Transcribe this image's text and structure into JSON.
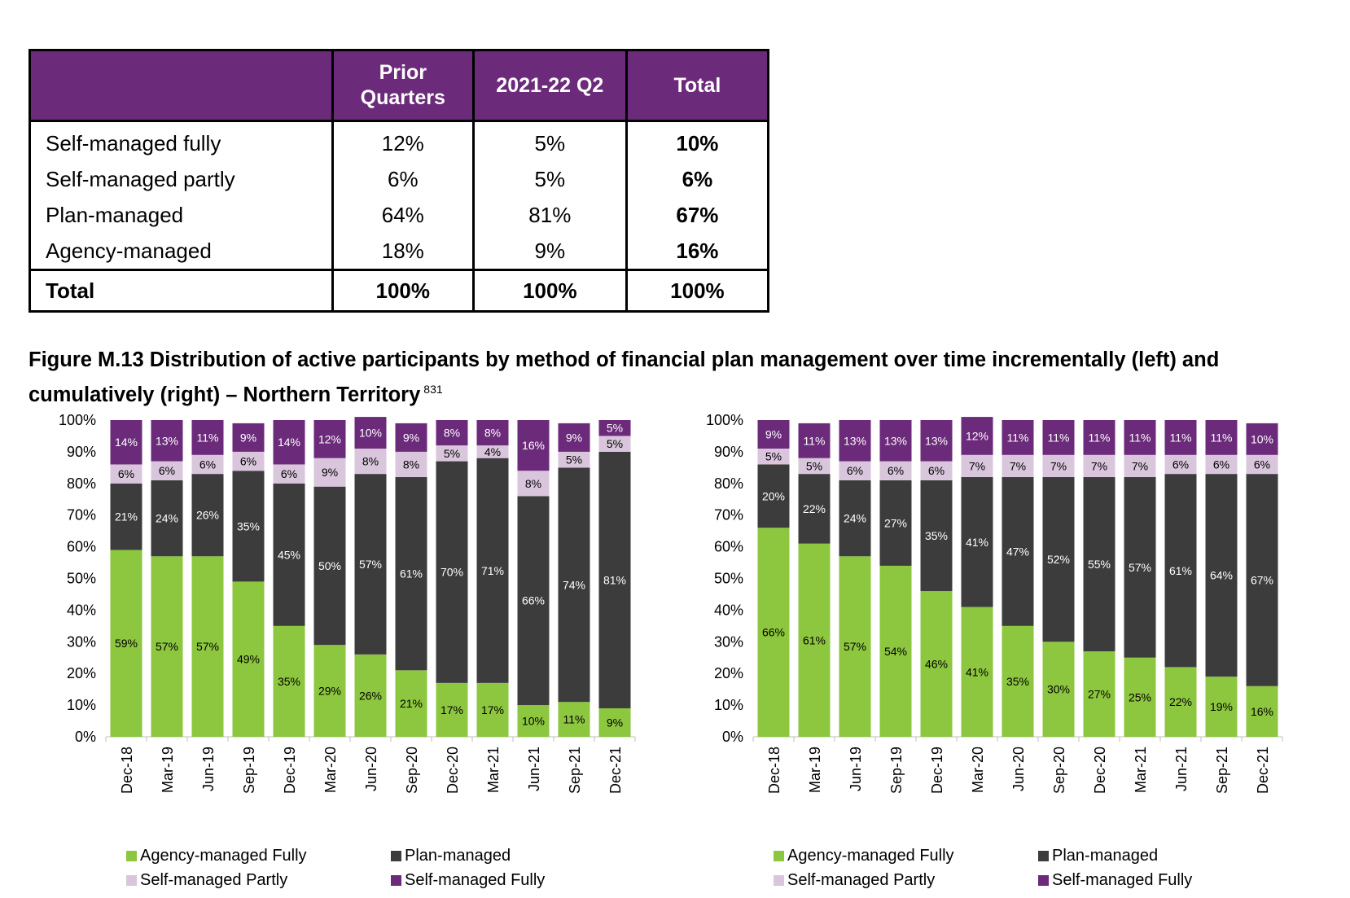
{
  "table": {
    "headers": [
      "",
      "Prior\nQuarters",
      "2021-22 Q2",
      "Total"
    ],
    "rows": [
      {
        "label": "Self-managed fully",
        "prior": "12%",
        "q2": "5%",
        "total": "10%"
      },
      {
        "label": "Self-managed partly",
        "prior": "6%",
        "q2": "5%",
        "total": "6%"
      },
      {
        "label": "Plan-managed",
        "prior": "64%",
        "q2": "81%",
        "total": "67%"
      },
      {
        "label": "Agency-managed",
        "prior": "18%",
        "q2": "9%",
        "total": "16%"
      }
    ],
    "footer": {
      "label": "Total",
      "prior": "100%",
      "q2": "100%",
      "total": "100%"
    }
  },
  "figure": {
    "title": "Figure M.13 Distribution of active participants by method of financial plan management over time incrementally (left) and cumulatively (right) – Northern Territory",
    "footnote": "831"
  },
  "colors": {
    "agency": "#8dc63f",
    "plan": "#3c3c3c",
    "partly": "#d9c6dc",
    "fully": "#6b2a7a",
    "header": "#6b2a7a"
  },
  "legend": {
    "agency": "Agency-managed Fully",
    "plan": "Plan-managed",
    "partly": "Self-managed Partly",
    "fully": "Self-managed Fully"
  },
  "chart_data": [
    {
      "type": "bar",
      "stacked": true,
      "categories": [
        "Dec-18",
        "Mar-19",
        "Jun-19",
        "Sep-19",
        "Dec-19",
        "Mar-20",
        "Jun-20",
        "Sep-20",
        "Dec-20",
        "Mar-21",
        "Jun-21",
        "Sep-21",
        "Dec-21"
      ],
      "yticks": [
        "0%",
        "10%",
        "20%",
        "30%",
        "40%",
        "50%",
        "60%",
        "70%",
        "80%",
        "90%",
        "100%"
      ],
      "ylim": [
        0,
        100
      ],
      "series": [
        {
          "name": "Agency-managed Fully",
          "values": [
            59,
            57,
            57,
            49,
            35,
            29,
            26,
            21,
            17,
            17,
            10,
            11,
            9
          ]
        },
        {
          "name": "Plan-managed",
          "values": [
            21,
            24,
            26,
            35,
            45,
            50,
            57,
            61,
            70,
            71,
            66,
            74,
            81
          ]
        },
        {
          "name": "Self-managed Partly",
          "values": [
            6,
            6,
            6,
            6,
            6,
            9,
            8,
            8,
            5,
            4,
            8,
            5,
            5
          ]
        },
        {
          "name": "Self-managed Fully",
          "values": [
            14,
            13,
            11,
            9,
            14,
            12,
            10,
            9,
            8,
            8,
            16,
            9,
            5
          ]
        }
      ]
    },
    {
      "type": "bar",
      "stacked": true,
      "categories": [
        "Dec-18",
        "Mar-19",
        "Jun-19",
        "Sep-19",
        "Dec-19",
        "Mar-20",
        "Jun-20",
        "Sep-20",
        "Dec-20",
        "Mar-21",
        "Jun-21",
        "Sep-21",
        "Dec-21"
      ],
      "yticks": [
        "0%",
        "10%",
        "20%",
        "30%",
        "40%",
        "50%",
        "60%",
        "70%",
        "80%",
        "90%",
        "100%"
      ],
      "ylim": [
        0,
        100
      ],
      "series": [
        {
          "name": "Agency-managed Fully",
          "values": [
            66,
            61,
            57,
            54,
            46,
            41,
            35,
            30,
            27,
            25,
            22,
            19,
            16
          ]
        },
        {
          "name": "Plan-managed",
          "values": [
            20,
            22,
            24,
            27,
            35,
            41,
            47,
            52,
            55,
            57,
            61,
            64,
            67
          ]
        },
        {
          "name": "Self-managed Partly",
          "values": [
            5,
            5,
            6,
            6,
            6,
            7,
            7,
            7,
            7,
            7,
            6,
            6,
            6
          ]
        },
        {
          "name": "Self-managed Fully",
          "values": [
            9,
            11,
            13,
            13,
            13,
            12,
            11,
            11,
            11,
            11,
            11,
            11,
            10
          ]
        }
      ]
    }
  ]
}
